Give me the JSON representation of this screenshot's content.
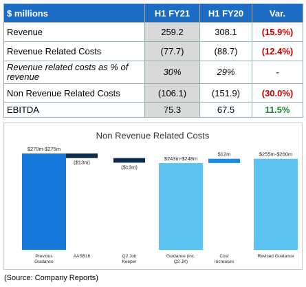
{
  "table": {
    "header": [
      "$ millions",
      "H1 FY21",
      "H1 FY20",
      "Var."
    ],
    "rows": [
      [
        "Revenue",
        "259.2",
        "308.1",
        "(15.9%)"
      ],
      [
        "Revenue Related Costs",
        "(77.7)",
        "(88.7)",
        "(12.4%)"
      ],
      [
        "Revenue related costs as % of revenue",
        "30%",
        "29%",
        "-"
      ],
      [
        "Non Revenue Related Costs",
        "(106.1)",
        "(151.9)",
        "(30.0%)"
      ],
      [
        "EBITDA",
        "75.3",
        "67.5",
        "11.5%"
      ]
    ]
  },
  "chart_data": {
    "type": "waterfall",
    "title": "Non Revenue Related Costs",
    "categories": [
      "Previous Guidance",
      "AASB16",
      "Q2 Job Keeper",
      "Guidance (inc. Q2 JK)",
      "Cost Increases",
      "Revised Guidance"
    ],
    "values": [
      272.5,
      -13,
      -13,
      245.5,
      12,
      257.5
    ],
    "value_labels": [
      "$270m-$275m",
      "($13m)",
      "($13m)",
      "$243m-$248m",
      "$12m",
      "$255m-$260m"
    ],
    "totals": [
      true,
      false,
      false,
      true,
      false,
      true
    ],
    "colors": [
      "#1479db",
      "#0b2c4a",
      "#0b2c4a",
      "#5bc3f2",
      "#1a8be0",
      "#5bc3f2"
    ]
  },
  "source": "(Source: Company Reports)"
}
